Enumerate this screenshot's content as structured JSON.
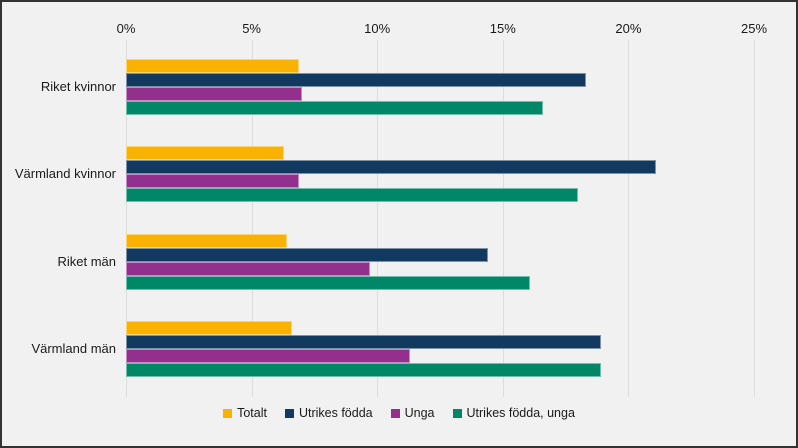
{
  "chart_data": {
    "type": "bar",
    "orientation": "horizontal",
    "title": "",
    "categories": [
      "Riket kvinnor",
      "Värmland kvinnor",
      "Riket män",
      "Värmland män"
    ],
    "series": [
      {
        "name": "Totalt",
        "color": "#F9B200",
        "values": [
          6.9,
          6.3,
          6.4,
          6.6
        ]
      },
      {
        "name": "Utrikes födda",
        "color": "#123A60",
        "values": [
          18.3,
          21.1,
          14.4,
          18.9
        ]
      },
      {
        "name": "Unga",
        "color": "#93308E",
        "values": [
          7.0,
          6.9,
          9.7,
          11.3
        ]
      },
      {
        "name": "Utrikes födda, unga",
        "color": "#008767",
        "values": [
          16.6,
          18.0,
          16.1,
          18.9
        ]
      }
    ],
    "x_axis": {
      "position": "top",
      "unit": "%",
      "tick_labels": [
        "0%",
        "5%",
        "10%",
        "15%",
        "20%",
        "25%"
      ],
      "tick_values": [
        0,
        5,
        10,
        15,
        20,
        25
      ],
      "min": 0,
      "max": 25
    },
    "legend": {
      "position": "bottom",
      "items": [
        "Totalt",
        "Utrikes födda",
        "Unga",
        "Utrikes födda, unga"
      ]
    },
    "grid": true,
    "colors": {
      "background": "#F1F1F1",
      "gridline": "#DCDCDC",
      "text": "#1A1A1A",
      "border": "#333333"
    }
  }
}
